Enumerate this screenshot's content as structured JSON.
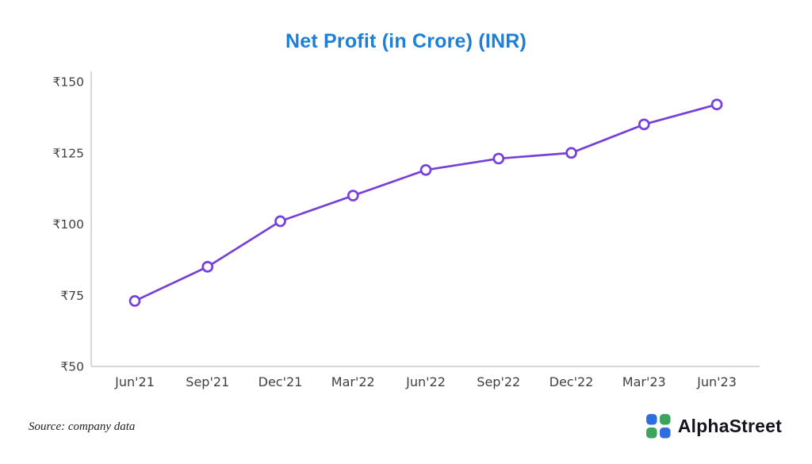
{
  "title": "Net Profit (in Crore) (INR)",
  "source_note": "Source: company data",
  "brand": {
    "name": "AlphaStreet"
  },
  "colors": {
    "title": "#1d7fd6",
    "line": "#7640d9",
    "marker_fill": "#ffffff",
    "axis": "#c9c9cf",
    "tick_text": "#3f3f46",
    "brand_text": "#15151f",
    "logo_blue": "#2e6ede",
    "logo_green": "#3ba55d"
  },
  "chart_data": {
    "type": "line",
    "title": "Net Profit (in Crore) (INR)",
    "categories": [
      "Jun'21",
      "Sep'21",
      "Dec'21",
      "Mar'22",
      "Jun'22",
      "Sep'22",
      "Dec'22",
      "Mar'23",
      "Jun'23"
    ],
    "values": [
      73,
      85,
      101,
      110,
      119,
      123,
      125,
      135,
      142
    ],
    "series_name": "Net Profit (Crore INR)",
    "xlabel": "",
    "ylabel": "",
    "ylim": [
      50,
      150
    ],
    "yticks": [
      50,
      75,
      100,
      125,
      150
    ],
    "ytick_prefix": "₹",
    "grid": false,
    "legend": "none",
    "marker": "open-circle"
  }
}
